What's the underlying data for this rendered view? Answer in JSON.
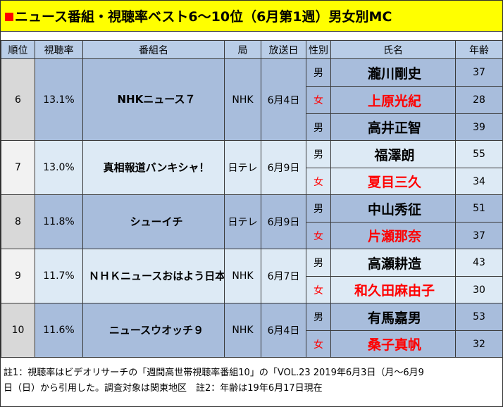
{
  "title": "ニュース番組・視聴率ベスト6〜10位（6月第1週）男女別MC",
  "headers": {
    "rank": "順位",
    "rating": "視聴率",
    "program": "番組名",
    "network": "局",
    "airdate": "放送日",
    "gender": "性別",
    "name": "氏名",
    "age": "年齢"
  },
  "rows": [
    {
      "rank": "6",
      "rating": "13.1%",
      "program": "NHKニュース７",
      "network": "NHK",
      "airdate": "6月4日",
      "mcs": [
        {
          "gender": "男",
          "name": "瀧川剛史",
          "age": "37"
        },
        {
          "gender": "女",
          "name": "上原光紀",
          "age": "28"
        },
        {
          "gender": "男",
          "name": "高井正智",
          "age": "39"
        }
      ]
    },
    {
      "rank": "7",
      "rating": "13.0%",
      "program": "真相報道バンキシャ！",
      "network": "日テレ",
      "airdate": "6月9日",
      "mcs": [
        {
          "gender": "男",
          "name": "福澤朗",
          "age": "55"
        },
        {
          "gender": "女",
          "name": "夏目三久",
          "age": "34"
        }
      ]
    },
    {
      "rank": "8",
      "rating": "11.8%",
      "program": "シューイチ",
      "network": "日テレ",
      "airdate": "6月9日",
      "mcs": [
        {
          "gender": "男",
          "name": "中山秀征",
          "age": "51"
        },
        {
          "gender": "女",
          "name": "片瀬那奈",
          "age": "37"
        }
      ]
    },
    {
      "rank": "9",
      "rating": "11.7%",
      "program": "ＮＨＫニュースおはよう日本",
      "network": "NHK",
      "airdate": "6月7日",
      "mcs": [
        {
          "gender": "男",
          "name": "高瀬耕造",
          "age": "43"
        },
        {
          "gender": "女",
          "name": "和久田麻由子",
          "age": "30"
        }
      ]
    },
    {
      "rank": "10",
      "rating": "11.6%",
      "program": "ニュースウオッチ９",
      "network": "NHK",
      "airdate": "6月4日",
      "mcs": [
        {
          "gender": "男",
          "name": "有馬嘉男",
          "age": "53"
        },
        {
          "gender": "女",
          "name": "桑子真帆",
          "age": "32"
        }
      ]
    }
  ],
  "notes": {
    "line1": "註1：視聴率はビデオリサーチの「週間高世帯視聴率番組10」の「VOL.23 2019年6月3日（月〜6月9",
    "line2": "日（日）から引用した。調査対象は関東地区　註2：年齢は19年6月17日現在"
  },
  "colors": {
    "title_bg": "#ffff00",
    "title_square": "#ff0000",
    "header_bg": "#b9cde7",
    "row_dark": "#a8bddc",
    "row_light": "#ddeaf5",
    "female_text": "#ff0000"
  }
}
